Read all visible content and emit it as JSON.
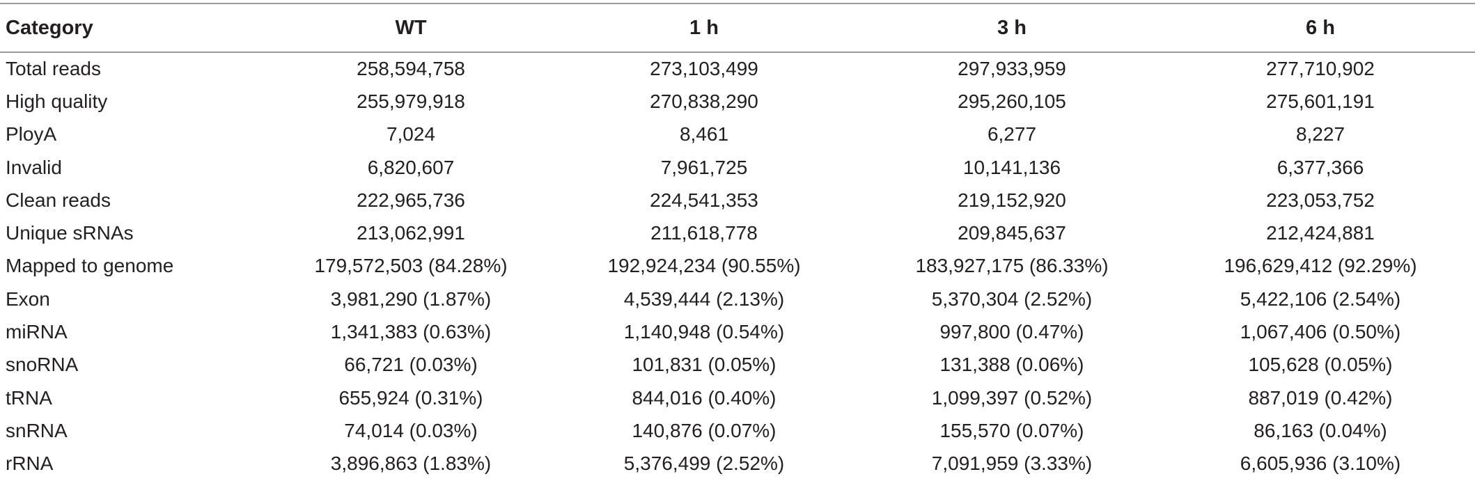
{
  "table": {
    "headers": [
      "Category",
      "WT",
      "1 h",
      "3 h",
      "6 h"
    ],
    "rows": [
      [
        "Total reads",
        "258,594,758",
        "273,103,499",
        "297,933,959",
        "277,710,902"
      ],
      [
        "High quality",
        "255,979,918",
        "270,838,290",
        "295,260,105",
        "275,601,191"
      ],
      [
        "PloyA",
        "7,024",
        "8,461",
        "6,277",
        "8,227"
      ],
      [
        "Invalid",
        "6,820,607",
        "7,961,725",
        "10,141,136",
        "6,377,366"
      ],
      [
        "Clean reads",
        "222,965,736",
        "224,541,353",
        "219,152,920",
        "223,053,752"
      ],
      [
        "Unique sRNAs",
        "213,062,991",
        "211,618,778",
        "209,845,637",
        "212,424,881"
      ],
      [
        "Mapped to genome",
        "179,572,503 (84.28%)",
        "192,924,234 (90.55%)",
        "183,927,175 (86.33%)",
        "196,629,412 (92.29%)"
      ],
      [
        "Exon",
        "3,981,290 (1.87%)",
        "4,539,444 (2.13%)",
        "5,370,304 (2.52%)",
        "5,422,106 (2.54%)"
      ],
      [
        "miRNA",
        "1,341,383 (0.63%)",
        "1,140,948 (0.54%)",
        "997,800 (0.47%)",
        "1,067,406 (0.50%)"
      ],
      [
        "snoRNA",
        "66,721 (0.03%)",
        "101,831 (0.05%)",
        "131,388 (0.06%)",
        "105,628 (0.05%)"
      ],
      [
        "tRNA",
        "655,924 (0.31%)",
        "844,016 (0.40%)",
        "1,099,397 (0.52%)",
        "887,019 (0.42%)"
      ],
      [
        "snRNA",
        "74,014 (0.03%)",
        "140,876 (0.07%)",
        "155,570 (0.07%)",
        "86,163 (0.04%)"
      ],
      [
        "rRNA",
        "3,896,863 (1.83%)",
        "5,376,499 (2.52%)",
        "7,091,959 (3.33%)",
        "6,605,936 (3.10%)"
      ]
    ]
  }
}
